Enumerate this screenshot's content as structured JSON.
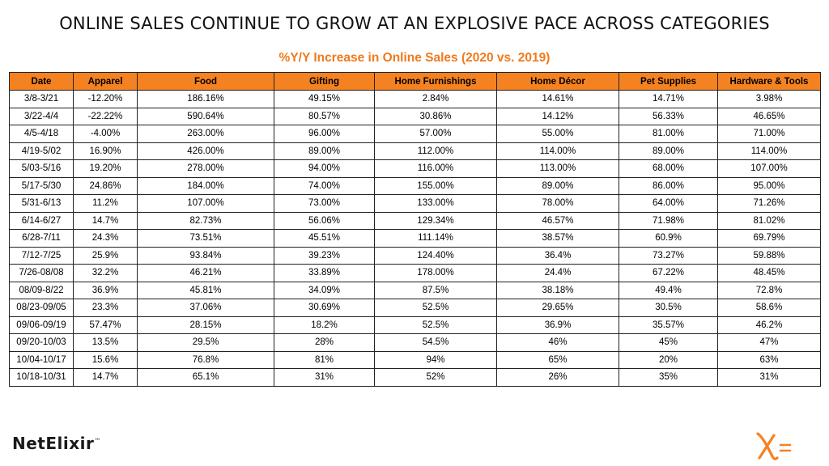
{
  "header": {
    "title": "ONLINE SALES CONTINUE TO GROW AT AN EXPLOSIVE PACE ACROSS CATEGORIES"
  },
  "chart_data": {
    "type": "table",
    "title": "%Y/Y Increase in Online Sales (2020 vs. 2019)",
    "columns": [
      "Date",
      "Apparel",
      "Food",
      "Gifting",
      "Home Furnishings",
      "Home Décor",
      "Pet Supplies",
      "Hardware & Tools"
    ],
    "rows": [
      [
        "3/8-3/21",
        "-12.20%",
        "186.16%",
        "49.15%",
        "2.84%",
        "14.61%",
        "14.71%",
        "3.98%"
      ],
      [
        "3/22-4/4",
        "-22.22%",
        "590.64%",
        "80.57%",
        "30.86%",
        "14.12%",
        "56.33%",
        "46.65%"
      ],
      [
        "4/5-4/18",
        "-4.00%",
        "263.00%",
        "96.00%",
        "57.00%",
        "55.00%",
        "81.00%",
        "71.00%"
      ],
      [
        "4/19-5/02",
        "16.90%",
        "426.00%",
        "89.00%",
        "112.00%",
        "114.00%",
        "89.00%",
        "114.00%"
      ],
      [
        "5/03-5/16",
        "19.20%",
        "278.00%",
        "94.00%",
        "116.00%",
        "113.00%",
        "68.00%",
        "107.00%"
      ],
      [
        "5/17-5/30",
        "24.86%",
        "184.00%",
        "74.00%",
        "155.00%",
        "89.00%",
        "86.00%",
        "95.00%"
      ],
      [
        "5/31-6/13",
        "11.2%",
        "107.00%",
        "73.00%",
        "133.00%",
        "78.00%",
        "64.00%",
        "71.26%"
      ],
      [
        "6/14-6/27",
        "14.7%",
        "82.73%",
        "56.06%",
        "129.34%",
        "46.57%",
        "71.98%",
        "81.02%"
      ],
      [
        "6/28-7/11",
        "24.3%",
        "73.51%",
        "45.51%",
        "111.14%",
        "38.57%",
        "60.9%",
        "69.79%"
      ],
      [
        "7/12-7/25",
        "25.9%",
        "93.84%",
        "39.23%",
        "124.40%",
        "36.4%",
        "73.27%",
        "59.88%"
      ],
      [
        "7/26-08/08",
        "32.2%",
        "46.21%",
        "33.89%",
        "178.00%",
        "24.4%",
        "67.22%",
        "48.45%"
      ],
      [
        "08/09-8/22",
        "36.9%",
        "45.81%",
        "34.09%",
        "87.5%",
        "38.18%",
        "49.4%",
        "72.8%"
      ],
      [
        "08/23-09/05",
        "23.3%",
        "37.06%",
        "30.69%",
        "52.5%",
        "29.65%",
        "30.5%",
        "58.6%"
      ],
      [
        "09/06-09/19",
        "57.47%",
        "28.15%",
        "18.2%",
        "52.5%",
        "36.9%",
        "35.57%",
        "46.2%"
      ],
      [
        "09/20-10/03",
        "13.5%",
        "29.5%",
        "28%",
        "54.5%",
        "46%",
        "45%",
        "47%"
      ],
      [
        "10/04-10/17",
        "15.6%",
        "76.8%",
        "81%",
        "94%",
        "65%",
        "20%",
        "63%"
      ],
      [
        "10/18-10/31",
        "14.7%",
        "65.1%",
        "31%",
        "52%",
        "26%",
        "35%",
        "31%"
      ]
    ]
  },
  "footer": {
    "logo_text": "NetElixir",
    "logo_mark": "™"
  },
  "colors": {
    "header_fill": "#f58220",
    "subtitle": "#f07a1c",
    "border": "#222222",
    "brand_mark": "#f58220"
  },
  "icons": {
    "brand_mark": "x-equals-logo-icon"
  }
}
